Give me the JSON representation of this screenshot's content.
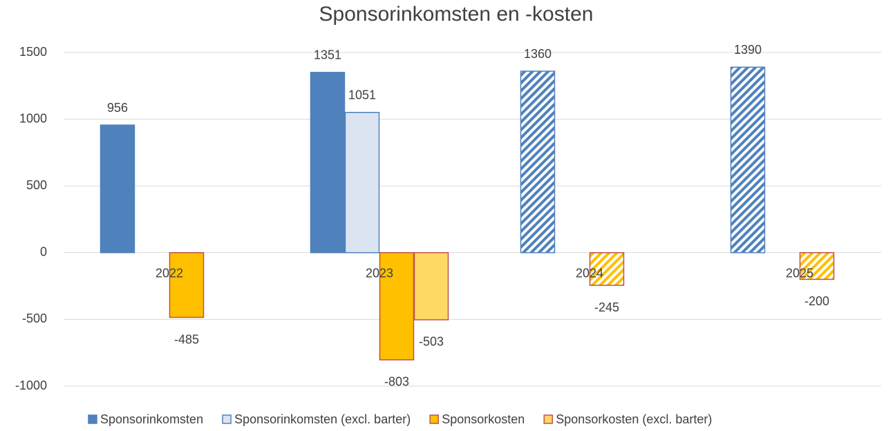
{
  "chart_data": {
    "type": "bar",
    "title": "Sponsorinkomsten en -kosten",
    "categories": [
      "2022",
      "2023",
      "2024",
      "2025"
    ],
    "hatch": [
      false,
      false,
      true,
      true
    ],
    "series": [
      {
        "name": "Sponsorinkomsten",
        "color": "#4f81bd",
        "stroke": "#4f81bd",
        "values": [
          956,
          1351,
          1360,
          1390
        ]
      },
      {
        "name": "Sponsorinkomsten (excl. barter)",
        "color": "#dbe5f1",
        "stroke": "#4f81bd",
        "values": [
          null,
          1051,
          null,
          null
        ]
      },
      {
        "name": "Sponsorkosten",
        "color": "#ffc000",
        "stroke": "#c0504d",
        "values": [
          -485,
          -803,
          -245,
          -200
        ]
      },
      {
        "name": "Sponsorkosten (excl. barter)",
        "color": "#ffd966",
        "stroke": "#c0504d",
        "values": [
          null,
          -503,
          null,
          null
        ]
      }
    ],
    "ylim": [
      -1000,
      1500
    ],
    "yticks": [
      -1000,
      -500,
      0,
      500,
      1000,
      1500
    ],
    "grid": true,
    "legend": "bottom"
  }
}
